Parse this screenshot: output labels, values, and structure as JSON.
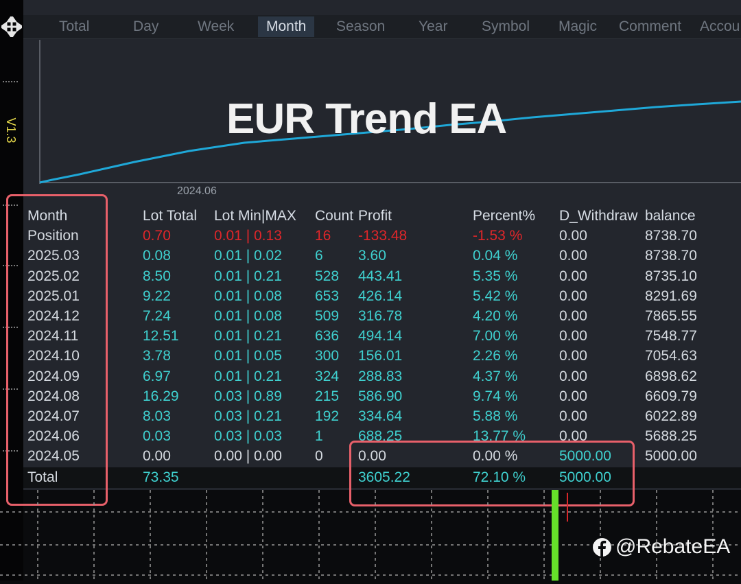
{
  "tabs": [
    "Total",
    "Day",
    "Week",
    "Month",
    "Season",
    "Year",
    "Symbol",
    "Magic",
    "Comment",
    "Accou"
  ],
  "active_tab": "Month",
  "version_label": "V1.3",
  "watermark": "EUR Trend EA",
  "chart_date_label": "2024.06",
  "table": {
    "headers": {
      "month": "Month",
      "lot_total": "Lot Total",
      "lot_min_max": "Lot Min|MAX",
      "count": "Count",
      "profit": "Profit",
      "percent": "Percent%",
      "withdraw": "D_Withdraw",
      "balance": "balance"
    },
    "position": {
      "month": "Position",
      "lot_total": "0.70",
      "lot_min_max": "0.01 | 0.13",
      "count": "16",
      "profit": "-133.48",
      "percent": "-1.53 %",
      "withdraw": "0.00",
      "balance": "8738.70"
    },
    "rows": [
      {
        "month": "2025.03",
        "lot_total": "0.08",
        "lot_min_max": "0.01 | 0.02",
        "count": "6",
        "profit": "3.60",
        "percent": "0.04 %",
        "withdraw": "0.00",
        "balance": "8738.70"
      },
      {
        "month": "2025.02",
        "lot_total": "8.50",
        "lot_min_max": "0.01 | 0.21",
        "count": "528",
        "profit": "443.41",
        "percent": "5.35 %",
        "withdraw": "0.00",
        "balance": "8735.10"
      },
      {
        "month": "2025.01",
        "lot_total": "9.22",
        "lot_min_max": "0.01 | 0.08",
        "count": "653",
        "profit": "426.14",
        "percent": "5.42 %",
        "withdraw": "0.00",
        "balance": "8291.69"
      },
      {
        "month": "2024.12",
        "lot_total": "7.24",
        "lot_min_max": "0.01 | 0.08",
        "count": "509",
        "profit": "316.78",
        "percent": "4.20 %",
        "withdraw": "0.00",
        "balance": "7865.55"
      },
      {
        "month": "2024.11",
        "lot_total": "12.51",
        "lot_min_max": "0.01 | 0.21",
        "count": "636",
        "profit": "494.14",
        "percent": "7.00 %",
        "withdraw": "0.00",
        "balance": "7548.77"
      },
      {
        "month": "2024.10",
        "lot_total": "3.78",
        "lot_min_max": "0.01 | 0.05",
        "count": "300",
        "profit": "156.01",
        "percent": "2.26 %",
        "withdraw": "0.00",
        "balance": "7054.63"
      },
      {
        "month": "2024.09",
        "lot_total": "6.97",
        "lot_min_max": "0.01 | 0.21",
        "count": "324",
        "profit": "288.83",
        "percent": "4.37 %",
        "withdraw": "0.00",
        "balance": "6898.62"
      },
      {
        "month": "2024.08",
        "lot_total": "16.29",
        "lot_min_max": "0.03 | 0.89",
        "count": "215",
        "profit": "586.90",
        "percent": "9.74 %",
        "withdraw": "0.00",
        "balance": "6609.79"
      },
      {
        "month": "2024.07",
        "lot_total": "8.03",
        "lot_min_max": "0.03 | 0.21",
        "count": "192",
        "profit": "334.64",
        "percent": "5.88 %",
        "withdraw": "0.00",
        "balance": "6022.89"
      },
      {
        "month": "2024.06",
        "lot_total": "0.03",
        "lot_min_max": "0.03 | 0.03",
        "count": "1",
        "profit": "688.25",
        "percent": "13.77 %",
        "withdraw": "0.00",
        "balance": "5688.25"
      }
    ],
    "deposit_row": {
      "month": "2024.05",
      "lot_total": "0.00",
      "lot_min_max": "0.00 | 0.00",
      "count": "0",
      "profit": "0.00",
      "percent": "0.00 %",
      "withdraw": "5000.00",
      "balance": "5000.00"
    },
    "total_row": {
      "month": "Total",
      "lot_total": "73.35",
      "profit": "3605.22",
      "percent": "72.10 %",
      "withdraw": "5000.00"
    }
  },
  "brand": "@RebateEA",
  "colors": {
    "panel_bg": "#23262d",
    "value_cyan": "#3fd0cf",
    "negative_red": "#e0262a",
    "equity_line": "#1fa8d8",
    "annotation_box": "#e8606a",
    "volume_green": "#66e02a"
  }
}
